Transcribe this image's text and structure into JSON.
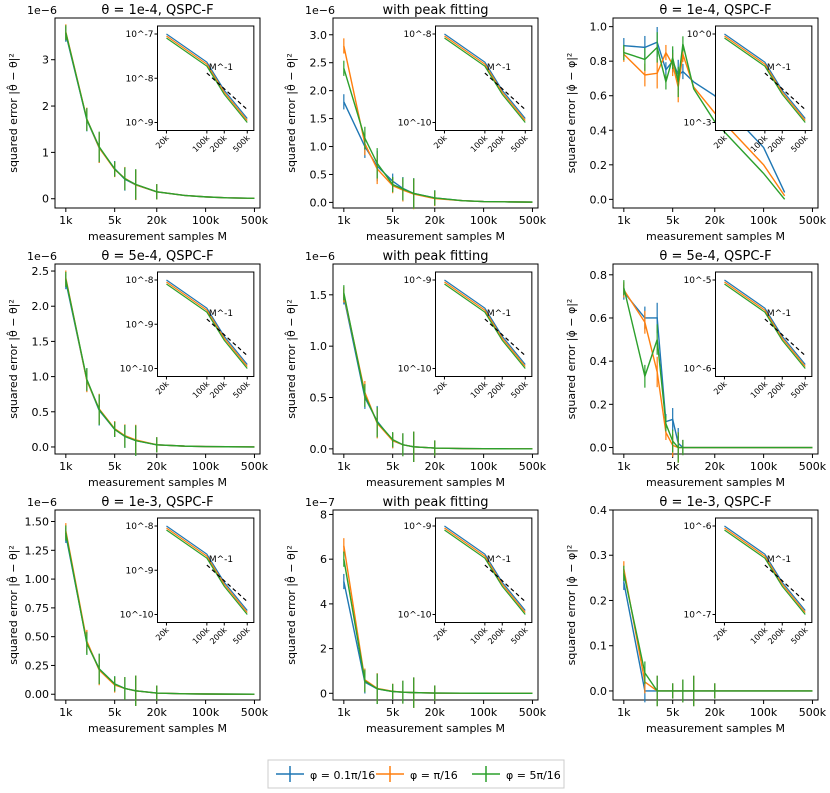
{
  "colors": {
    "blue": "#1f77b4",
    "orange": "#ff7f0e",
    "green": "#2ca02c",
    "dashed": "#000000"
  },
  "shared": {
    "xlabel": "measurement samples M",
    "x_ticks": [
      "1k",
      "5k",
      "20k",
      "100k",
      "500k"
    ],
    "inset_x_ticks": [
      "20k",
      "100k",
      "200k",
      "500k"
    ],
    "ref_label": "M^-1"
  },
  "legend": {
    "entries": [
      "φ = 0.1π/16",
      "φ = π/16",
      "φ = 5π/16"
    ]
  },
  "chart_data": [
    {
      "type": "line",
      "title": "θ = 1e-4, QSPC-F",
      "ylabel": "squared error |θ̂ − θ|²",
      "offset": "1e−6",
      "y_ticks": [
        "0",
        "1",
        "2",
        "3"
      ],
      "ylim": [
        -0.2,
        3.9
      ],
      "x": [
        1,
        2,
        3,
        5,
        7,
        10,
        20,
        50,
        100,
        200,
        500
      ],
      "series": [
        {
          "name": "φ = 0.1π/16",
          "values": [
            3.55,
            1.7,
            1.1,
            0.65,
            0.42,
            0.3,
            0.15,
            0.07,
            0.04,
            0.02,
            0.01
          ]
        },
        {
          "name": "φ = π/16",
          "values": [
            3.6,
            1.72,
            1.1,
            0.63,
            0.44,
            0.3,
            0.15,
            0.07,
            0.04,
            0.02,
            0.01
          ]
        },
        {
          "name": "φ = 5π/16",
          "values": [
            3.58,
            1.71,
            1.12,
            0.64,
            0.43,
            0.31,
            0.15,
            0.07,
            0.04,
            0.02,
            0.01
          ]
        }
      ],
      "inset": {
        "y_ticks": [
          "10^-7",
          "10^-8",
          "10^-9"
        ],
        "note": "log-log; curves nearly overlap"
      }
    },
    {
      "type": "line",
      "title": "with peak fitting",
      "ylabel": "squared error |θ̂ − θ|²",
      "offset": "1e−6",
      "y_ticks": [
        "0.0",
        "0.5",
        "1.0",
        "1.5",
        "2.0",
        "2.5",
        "3.0"
      ],
      "ylim": [
        -0.1,
        3.3
      ],
      "x": [
        1,
        2,
        3,
        5,
        7,
        10,
        20,
        50,
        100,
        200,
        500
      ],
      "series": [
        {
          "name": "φ = 0.1π/16",
          "values": [
            1.8,
            1.0,
            0.65,
            0.38,
            0.25,
            0.16,
            0.08,
            0.03,
            0.015,
            0.01,
            0.005
          ]
        },
        {
          "name": "φ = π/16",
          "values": [
            2.8,
            1.05,
            0.6,
            0.3,
            0.22,
            0.15,
            0.07,
            0.03,
            0.015,
            0.01,
            0.005
          ]
        },
        {
          "name": "φ = 5π/16",
          "values": [
            2.4,
            1.15,
            0.7,
            0.32,
            0.24,
            0.16,
            0.08,
            0.03,
            0.015,
            0.01,
            0.005
          ]
        }
      ],
      "inset": {
        "y_ticks": [
          "10^-8",
          "10^-10"
        ]
      }
    },
    {
      "type": "line",
      "title": "θ = 1e-4, QSPC-F",
      "ylabel": "squared error |φ̂ − φ|²",
      "offset": "",
      "y_ticks": [
        "0.0",
        "0.2",
        "0.4",
        "0.6",
        "0.8",
        "1.0"
      ],
      "ylim": [
        -0.05,
        1.05
      ],
      "x": [
        1,
        2,
        3,
        4,
        5,
        6,
        7,
        10,
        20,
        100,
        200
      ],
      "series": [
        {
          "name": "φ = 0.1π/16",
          "values": [
            0.89,
            0.88,
            0.91,
            0.75,
            0.8,
            0.72,
            0.74,
            0.68,
            0.6,
            0.3,
            0.04
          ]
        },
        {
          "name": "φ = π/16",
          "values": [
            0.84,
            0.72,
            0.73,
            0.85,
            0.78,
            0.65,
            0.84,
            0.65,
            0.5,
            0.2,
            0.02
          ]
        },
        {
          "name": "φ = 5π/16",
          "values": [
            0.85,
            0.81,
            0.88,
            0.68,
            0.82,
            0.68,
            0.9,
            0.64,
            0.45,
            0.15,
            0.0
          ]
        }
      ],
      "inset": {
        "y_ticks": [
          "10^0",
          "10^-3"
        ]
      }
    },
    {
      "type": "line",
      "title": "θ = 5e-4, QSPC-F",
      "ylabel": "squared error |θ̂ − θ|²",
      "offset": "1e−6",
      "y_ticks": [
        "0.0",
        "0.5",
        "1.0",
        "1.5",
        "2.0",
        "2.5"
      ],
      "ylim": [
        -0.1,
        2.6
      ],
      "x": [
        1,
        2,
        3,
        5,
        7,
        10,
        20,
        50,
        100,
        200,
        500
      ],
      "series": [
        {
          "name": "φ = 0.1π/16",
          "values": [
            2.35,
            0.95,
            0.52,
            0.25,
            0.15,
            0.09,
            0.03,
            0.012,
            0.006,
            0.003,
            0.001
          ]
        },
        {
          "name": "φ = π/16",
          "values": [
            2.4,
            0.94,
            0.54,
            0.26,
            0.16,
            0.1,
            0.03,
            0.012,
            0.006,
            0.003,
            0.001
          ]
        },
        {
          "name": "φ = 5π/16",
          "values": [
            2.38,
            0.96,
            0.53,
            0.25,
            0.15,
            0.09,
            0.03,
            0.012,
            0.006,
            0.003,
            0.001
          ]
        }
      ],
      "inset": {
        "y_ticks": [
          "10^-8",
          "10^-9",
          "10^-10"
        ]
      }
    },
    {
      "type": "line",
      "title": "with peak fitting",
      "ylabel": "squared error |θ̂ − θ|²",
      "offset": "1e−6",
      "y_ticks": [
        "0.0",
        "0.5",
        "1.0",
        "1.5"
      ],
      "ylim": [
        -0.05,
        1.8
      ],
      "x": [
        1,
        2,
        3,
        5,
        7,
        10,
        20,
        50,
        100,
        200,
        500
      ],
      "series": [
        {
          "name": "φ = 0.1π/16",
          "values": [
            1.48,
            0.5,
            0.27,
            0.08,
            0.04,
            0.02,
            0.008,
            0.003,
            0.0015,
            0.001,
            0.0005
          ]
        },
        {
          "name": "φ = π/16",
          "values": [
            1.5,
            0.55,
            0.25,
            0.08,
            0.04,
            0.02,
            0.008,
            0.003,
            0.0015,
            0.001,
            0.0005
          ]
        },
        {
          "name": "φ = 5π/16",
          "values": [
            1.52,
            0.52,
            0.26,
            0.09,
            0.04,
            0.02,
            0.008,
            0.003,
            0.0015,
            0.001,
            0.0005
          ]
        }
      ],
      "inset": {
        "y_ticks": [
          "10^-9",
          "10^-10"
        ]
      }
    },
    {
      "type": "line",
      "title": "θ = 5e-4, QSPC-F",
      "ylabel": "squared error |φ̂ − φ|²",
      "offset": "",
      "y_ticks": [
        "0.0",
        "0.2",
        "0.4",
        "0.6",
        "0.8"
      ],
      "ylim": [
        -0.03,
        0.85
      ],
      "x": [
        1,
        2,
        3,
        4,
        5,
        6,
        7,
        10,
        20,
        100,
        500
      ],
      "series": [
        {
          "name": "φ = 0.1π/16",
          "values": [
            0.72,
            0.6,
            0.6,
            0.12,
            0.13,
            0.02,
            0.0,
            0.0,
            0.0,
            0.0,
            0.0
          ]
        },
        {
          "name": "φ = π/16",
          "values": [
            0.73,
            0.58,
            0.35,
            0.07,
            0.01,
            0.0,
            0.0,
            0.0,
            0.0,
            0.0,
            0.0
          ]
        },
        {
          "name": "φ = 5π/16",
          "values": [
            0.74,
            0.33,
            0.5,
            0.11,
            0.03,
            0.0,
            0.0,
            0.0,
            0.0,
            0.0,
            0.0
          ]
        }
      ],
      "inset": {
        "y_ticks": [
          "10^-5",
          "10^-6"
        ]
      }
    },
    {
      "type": "line",
      "title": "θ = 1e-3, QSPC-F",
      "ylabel": "squared error |θ̂ − θ|²",
      "offset": "1e−6",
      "y_ticks": [
        "0.00",
        "0.25",
        "0.50",
        "0.75",
        "1.00",
        "1.25",
        "1.50"
      ],
      "ylim": [
        -0.05,
        1.6
      ],
      "x": [
        1,
        2,
        3,
        5,
        7,
        10,
        20,
        50,
        100,
        200,
        500
      ],
      "series": [
        {
          "name": "φ = 0.1π/16",
          "values": [
            1.38,
            0.45,
            0.22,
            0.09,
            0.05,
            0.03,
            0.01,
            0.004,
            0.002,
            0.001,
            0.0005
          ]
        },
        {
          "name": "φ = π/16",
          "values": [
            1.42,
            0.46,
            0.21,
            0.08,
            0.05,
            0.03,
            0.01,
            0.004,
            0.002,
            0.001,
            0.0005
          ]
        },
        {
          "name": "φ = 5π/16",
          "values": [
            1.4,
            0.44,
            0.22,
            0.09,
            0.05,
            0.03,
            0.01,
            0.004,
            0.002,
            0.001,
            0.0005
          ]
        }
      ],
      "inset": {
        "y_ticks": [
          "10^-8",
          "10^-9",
          "10^-10"
        ]
      }
    },
    {
      "type": "line",
      "title": "with peak fitting",
      "ylabel": "squared error |θ̂ − θ|²",
      "offset": "1e−7",
      "y_ticks": [
        "0",
        "2",
        "4",
        "6",
        "8"
      ],
      "ylim": [
        -0.3,
        8.2
      ],
      "x": [
        1,
        2,
        3,
        5,
        7,
        10,
        20,
        50,
        100,
        200,
        500
      ],
      "series": [
        {
          "name": "φ = 0.1π/16",
          "values": [
            5.0,
            0.5,
            0.2,
            0.08,
            0.05,
            0.03,
            0.01,
            0.005,
            0.002,
            0.001,
            0.0006
          ]
        },
        {
          "name": "φ = π/16",
          "values": [
            6.6,
            0.6,
            0.22,
            0.09,
            0.05,
            0.03,
            0.01,
            0.005,
            0.002,
            0.001,
            0.0006
          ]
        },
        {
          "name": "φ = 5π/16",
          "values": [
            6.0,
            0.55,
            0.2,
            0.08,
            0.05,
            0.03,
            0.01,
            0.005,
            0.002,
            0.001,
            0.0006
          ]
        }
      ],
      "inset": {
        "y_ticks": [
          "10^-9",
          "10^-10"
        ]
      }
    },
    {
      "type": "line",
      "title": "θ = 1e-3, QSPC-F",
      "ylabel": "squared error |φ̂ − φ|²",
      "offset": "",
      "y_ticks": [
        "0.0",
        "0.1",
        "0.2",
        "0.3",
        "0.4"
      ],
      "ylim": [
        -0.02,
        0.4
      ],
      "x": [
        1,
        2,
        3,
        5,
        7,
        10,
        20,
        50,
        100,
        200,
        500
      ],
      "series": [
        {
          "name": "φ = 0.1π/16",
          "values": [
            0.24,
            0.0,
            0.0,
            0.0,
            0.0,
            0.0,
            0.0,
            0.0,
            0.0,
            0.0,
            0.0
          ]
        },
        {
          "name": "φ = π/16",
          "values": [
            0.27,
            0.02,
            0.0,
            0.0,
            0.0,
            0.0,
            0.0,
            0.0,
            0.0,
            0.0,
            0.0
          ]
        },
        {
          "name": "φ = 5π/16",
          "values": [
            0.26,
            0.04,
            0.0,
            0.0,
            0.0,
            0.0,
            0.0,
            0.0,
            0.0,
            0.0,
            0.0
          ]
        }
      ],
      "inset": {
        "y_ticks": [
          "10^-6",
          "10^-7"
        ]
      }
    }
  ]
}
